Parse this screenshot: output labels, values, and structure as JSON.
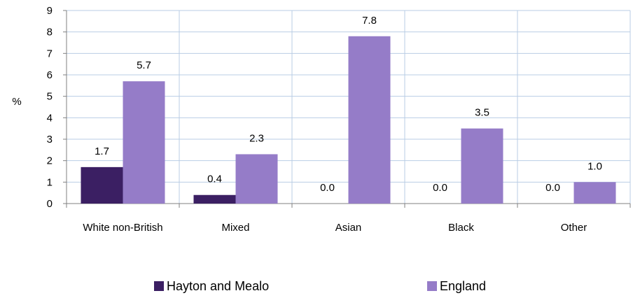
{
  "chart_data": {
    "type": "bar",
    "title": "",
    "xlabel": "",
    "ylabel": "%",
    "ylim": [
      0,
      9
    ],
    "yticks": [
      "0",
      "1",
      "2",
      "3",
      "4",
      "5",
      "6",
      "7",
      "8",
      "9"
    ],
    "grid": true,
    "legend_position": "bottom",
    "categories": [
      "White non-British",
      "Mixed",
      "Asian",
      "Black",
      "Other"
    ],
    "series": [
      {
        "name": "Hayton and Mealo",
        "color": "#3b1f63",
        "values": [
          1.7,
          0.4,
          0.0,
          0.0,
          0.0
        ],
        "labels": [
          "1.7",
          "0.4",
          "0.0",
          "0.0",
          "0.0"
        ]
      },
      {
        "name": "England",
        "color": "#957cc8",
        "values": [
          5.7,
          2.3,
          7.8,
          3.5,
          1.0
        ],
        "labels": [
          "5.7",
          "2.3",
          "7.8",
          "3.5",
          "1.0"
        ]
      }
    ]
  }
}
